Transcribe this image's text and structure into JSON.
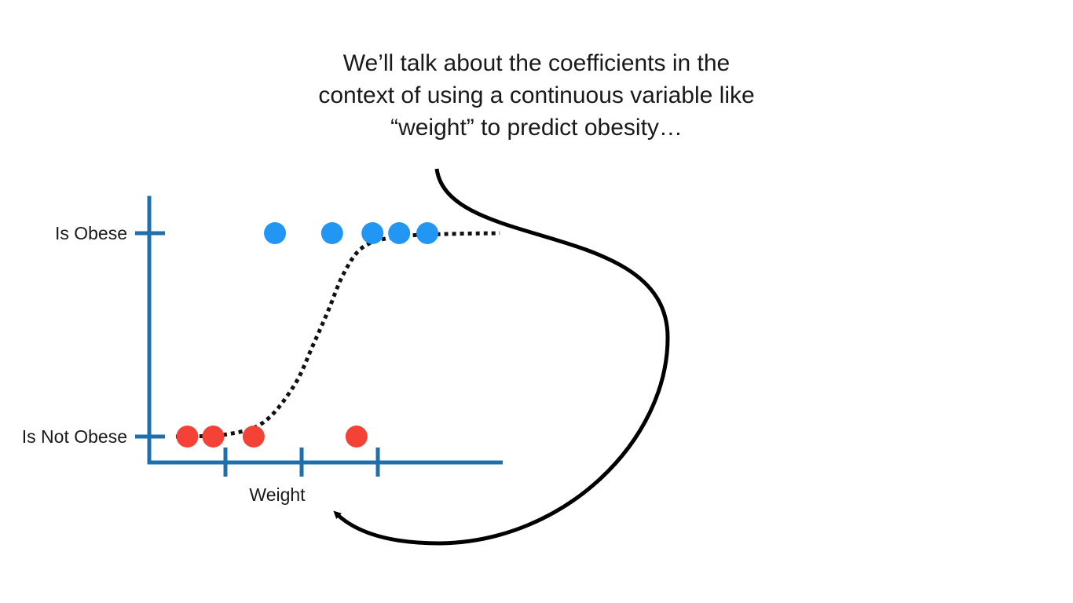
{
  "caption": {
    "lines": [
      "We’ll talk about the coefficients in the",
      "context of using a continuous variable like",
      "“weight” to predict obesity…"
    ]
  },
  "colors": {
    "axis": "#1f6fad",
    "obese_point": "#2196f3",
    "not_obese_point": "#f44336",
    "curve": "#111111",
    "arrow": "#000000"
  },
  "chart_data": {
    "type": "scatter",
    "xlabel": "Weight",
    "ylabel": "",
    "y_categories": [
      "Is Not Obese",
      "Is Obese"
    ],
    "x_ticks": [
      1,
      2,
      3
    ],
    "xlim": [
      0,
      4.6
    ],
    "series": [
      {
        "class": "Is Obese",
        "y": 1,
        "x": [
          1.65,
          2.4,
          2.93,
          3.28,
          3.65
        ]
      },
      {
        "class": "Is Not Obese",
        "y": 0,
        "x": [
          0.5,
          0.84,
          1.37,
          2.72
        ]
      }
    ],
    "fit_curve": {
      "style": "dotted",
      "shape": "sigmoid",
      "x": [
        0.35,
        1.0,
        1.5,
        1.9,
        2.15,
        2.35,
        2.55,
        2.8,
        3.2,
        3.8,
        4.6
      ],
      "y": [
        0.0,
        0.01,
        0.07,
        0.25,
        0.45,
        0.62,
        0.8,
        0.93,
        0.98,
        0.995,
        1.0
      ]
    }
  }
}
